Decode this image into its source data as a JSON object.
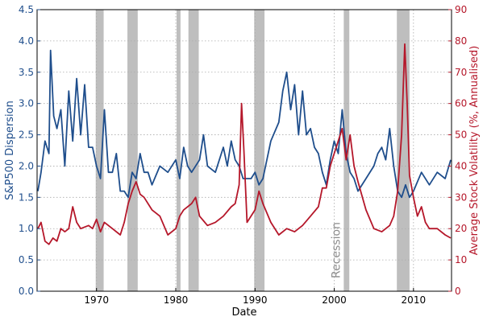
{
  "chart_data": {
    "type": "line",
    "xlabel": "Date",
    "ylabel_left": "S&P500 Dispersion",
    "ylabel_right": "Average Stock Volatility (%, Annualised)",
    "xlim": [
      1962.5,
      2014.8
    ],
    "ylim_left": [
      0,
      4.5
    ],
    "ylim_right": [
      0,
      90
    ],
    "x_ticks": [
      1970,
      1980,
      1990,
      2000,
      2010
    ],
    "x_tick_labels": [
      "1970",
      "1980",
      "1990",
      "2000",
      "2010"
    ],
    "y_left_ticks": [
      0,
      0.5,
      1,
      1.5,
      2,
      2.5,
      3,
      3.5,
      4,
      4.5
    ],
    "y_left_tick_labels": [
      "0.0",
      "0.5",
      "1.0",
      "1.5",
      "2.0",
      "2.5",
      "3.0",
      "3.5",
      "4.0",
      "4.5"
    ],
    "y_right_ticks": [
      0,
      10,
      20,
      30,
      40,
      50,
      60,
      70,
      80,
      90
    ],
    "y_right_tick_labels": [
      "0",
      "10",
      "20",
      "30",
      "40",
      "50",
      "60",
      "70",
      "80",
      "90"
    ],
    "grid": true,
    "colors": {
      "left": "#1f4e8c",
      "right": "#b5172a",
      "recession": "#b3b3b3",
      "grid": "#aaaaaa"
    },
    "recessions": [
      [
        1969.9,
        1970.9
      ],
      [
        1973.9,
        1975.2
      ],
      [
        1980.1,
        1980.6
      ],
      [
        1981.6,
        1982.9
      ],
      [
        1989.9,
        1991.2
      ],
      [
        2001.2,
        2001.9
      ],
      [
        2007.9,
        2009.5
      ]
    ],
    "annotation": "Recession",
    "series": [
      {
        "axis": "left",
        "x": [
          1962.6,
          1963,
          1963.5,
          1964,
          1964.2,
          1964.6,
          1965,
          1965.5,
          1966,
          1966.5,
          1967,
          1967.5,
          1968,
          1968.5,
          1969,
          1969.5,
          1970,
          1970.5,
          1971,
          1971.5,
          1972,
          1972.5,
          1973,
          1973.5,
          1974,
          1974.5,
          1975,
          1975.5,
          1976,
          1976.5,
          1977,
          1978,
          1979,
          1980,
          1980.5,
          1981,
          1981.5,
          1982,
          1983,
          1983.5,
          1984,
          1985,
          1986,
          1986.5,
          1987,
          1987.5,
          1988,
          1988.5,
          1989,
          1989.5,
          1990,
          1990.5,
          1991,
          1992,
          1993,
          1993.5,
          1994,
          1994.5,
          1995,
          1995.5,
          1996,
          1996.5,
          1997,
          1997.5,
          1998,
          1998.5,
          1999,
          1999.5,
          2000,
          2000.5,
          2001,
          2001.5,
          2002,
          2002.5,
          2003,
          2004,
          2005,
          2005.5,
          2006,
          2006.5,
          2007,
          2007.5,
          2008,
          2008.5,
          2009,
          2009.5,
          2010,
          2011,
          2012,
          2013,
          2014,
          2014.7
        ],
        "y": [
          1.6,
          1.9,
          2.4,
          2.2,
          3.85,
          2.8,
          2.6,
          2.9,
          2.0,
          3.2,
          2.4,
          3.4,
          2.5,
          3.3,
          2.3,
          2.3,
          2.0,
          1.8,
          2.9,
          1.9,
          1.9,
          2.2,
          1.6,
          1.6,
          1.5,
          1.9,
          1.8,
          2.2,
          1.9,
          1.9,
          1.7,
          2.0,
          1.9,
          2.1,
          1.8,
          2.3,
          2.0,
          1.9,
          2.1,
          2.5,
          2.0,
          1.9,
          2.3,
          2.0,
          2.4,
          2.1,
          2.0,
          1.8,
          1.8,
          1.8,
          1.9,
          1.7,
          1.8,
          2.4,
          2.7,
          3.2,
          3.5,
          2.9,
          3.3,
          2.5,
          3.2,
          2.5,
          2.6,
          2.3,
          2.2,
          1.9,
          1.7,
          2.1,
          2.4,
          2.2,
          2.9,
          2.2,
          1.9,
          1.8,
          1.6,
          1.8,
          2.0,
          2.2,
          2.3,
          2.1,
          2.6,
          2.0,
          1.6,
          1.5,
          1.7,
          1.5,
          1.6,
          1.9,
          1.7,
          1.9,
          1.8,
          2.1
        ]
      },
      {
        "axis": "right",
        "x": [
          1962.6,
          1963,
          1963.5,
          1964,
          1964.5,
          1965,
          1965.5,
          1966,
          1966.5,
          1967,
          1967.5,
          1968,
          1969,
          1969.5,
          1970,
          1970.5,
          1971,
          1972,
          1973,
          1973.5,
          1974,
          1974.5,
          1975,
          1975.5,
          1976,
          1977,
          1978,
          1979,
          1980,
          1980.5,
          1981,
          1982,
          1982.5,
          1983,
          1984,
          1985,
          1986,
          1987,
          1987.5,
          1988,
          1988.3,
          1988.6,
          1989,
          1990,
          1990.5,
          1991,
          1992,
          1993,
          1994,
          1995,
          1996,
          1997,
          1998,
          1998.5,
          1999,
          1999.5,
          2000,
          2000.5,
          2001,
          2001.5,
          2002,
          2002.5,
          2003,
          2004,
          2005,
          2006,
          2007,
          2007.5,
          2008,
          2008.5,
          2008.9,
          2009.2,
          2009.5,
          2010,
          2010.5,
          2011,
          2011.5,
          2012,
          2013,
          2014,
          2014.7
        ],
        "y": [
          20,
          22,
          16,
          15,
          17,
          16,
          20,
          19,
          20,
          27,
          22,
          20,
          21,
          20,
          23,
          19,
          22,
          20,
          18,
          22,
          28,
          32,
          35,
          31,
          30,
          26,
          24,
          18,
          20,
          24,
          26,
          28,
          30,
          24,
          21,
          22,
          24,
          27,
          28,
          34,
          60,
          45,
          22,
          26,
          32,
          28,
          22,
          18,
          20,
          19,
          21,
          24,
          27,
          33,
          33,
          40,
          44,
          48,
          52,
          42,
          50,
          40,
          35,
          26,
          20,
          19,
          21,
          24,
          32,
          50,
          79,
          60,
          37,
          30,
          24,
          27,
          22,
          20,
          20,
          18,
          17
        ]
      }
    ]
  }
}
